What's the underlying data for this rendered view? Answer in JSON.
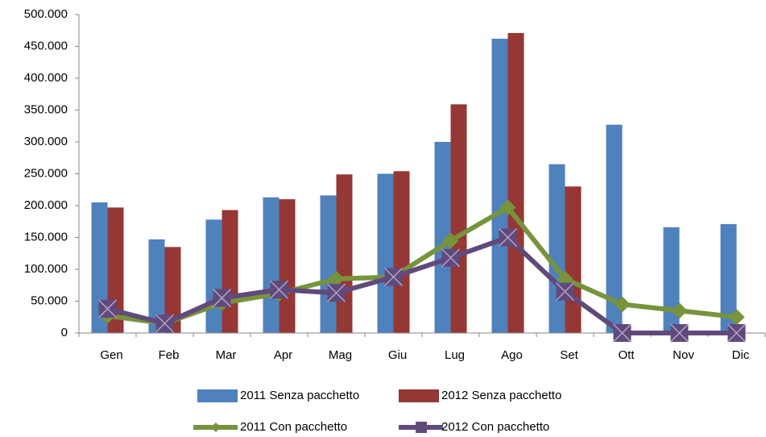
{
  "chart_data": {
    "type": "bar-line",
    "categories": [
      "Gen",
      "Feb",
      "Mar",
      "Apr",
      "Mag",
      "Giu",
      "Lug",
      "Ago",
      "Set",
      "Ott",
      "Nov",
      "Dic"
    ],
    "series": [
      {
        "name": "2011 Senza pacchetto",
        "type": "bar",
        "color": "#4f81bd",
        "values": [
          205000,
          147000,
          178000,
          213000,
          216000,
          250000,
          300000,
          462000,
          265000,
          327000,
          166000,
          171000
        ]
      },
      {
        "name": "2012 Senza pacchetto",
        "type": "bar",
        "color": "#953735",
        "values": [
          197000,
          135000,
          193000,
          210000,
          249000,
          254000,
          359000,
          471000,
          230000,
          null,
          null,
          null
        ]
      },
      {
        "name": "2011 Con pacchetto",
        "type": "line",
        "marker": "diamond",
        "color": "#77933c",
        "values": [
          27000,
          15000,
          47000,
          62000,
          85000,
          88000,
          145000,
          197000,
          85000,
          45000,
          35000,
          25000
        ]
      },
      {
        "name": "2012 Con pacchetto",
        "type": "line",
        "marker": "square-x",
        "color": "#604a7b",
        "values": [
          38000,
          15000,
          55000,
          68000,
          63000,
          88000,
          118000,
          150000,
          65000,
          0,
          0,
          0
        ]
      }
    ],
    "ylim": [
      0,
      500000
    ],
    "yticks": [
      0,
      {
        "value": 50000,
        "label": "50.000"
      },
      {
        "value": 100000,
        "label": "100.000"
      },
      {
        "value": 150000,
        "label": "150.000"
      },
      {
        "value": 200000,
        "label": "200.000"
      },
      {
        "value": 250000,
        "label": "250.000"
      },
      {
        "value": 300000,
        "label": "300.000"
      },
      {
        "value": 350000,
        "label": "350.000"
      },
      {
        "value": 400000,
        "label": "400.000"
      },
      {
        "value": 450000,
        "label": "450.000"
      },
      {
        "value": 500000,
        "label": "500.000"
      }
    ],
    "legend": "bottom"
  }
}
